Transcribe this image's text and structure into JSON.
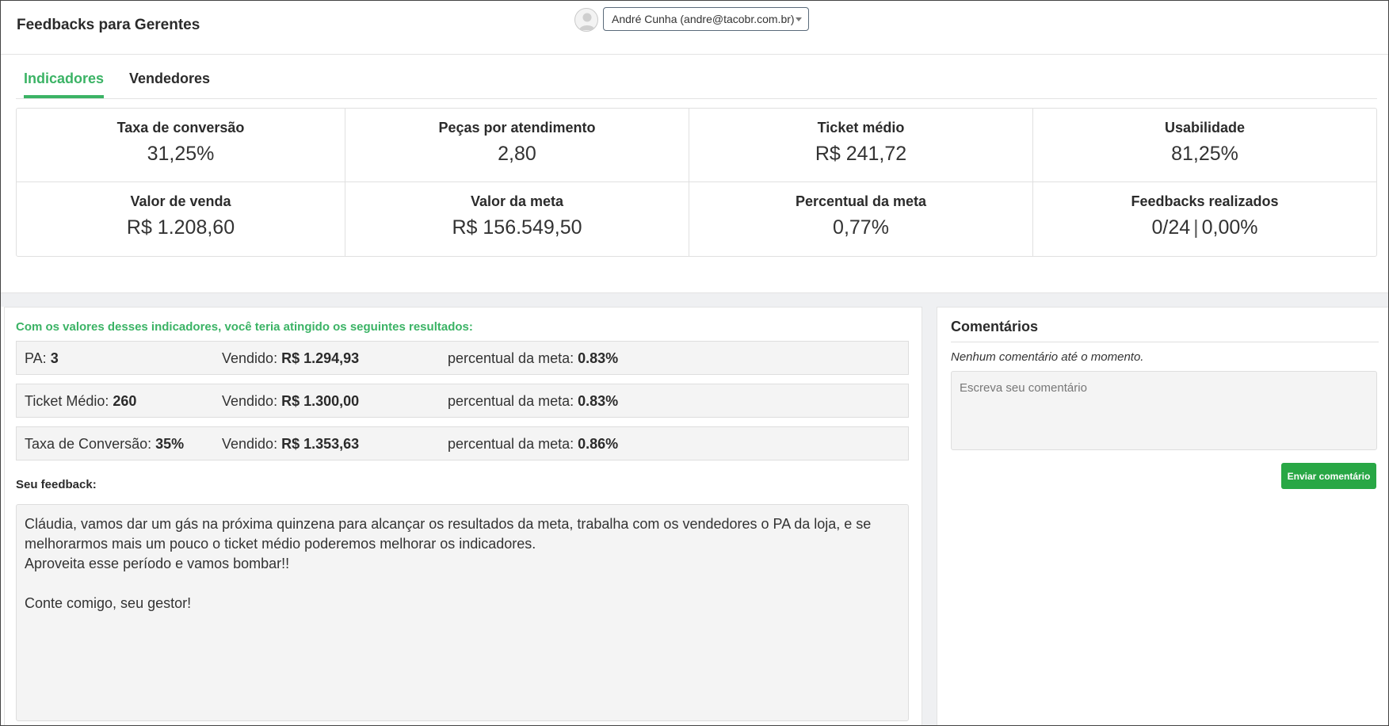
{
  "header": {
    "title": "Feedbacks para Gerentes",
    "user_select": "André Cunha (andre@tacobr.com.br)",
    "avatar_icon": "user-avatar-icon"
  },
  "tabs": [
    {
      "label": "Indicadores",
      "active": true
    },
    {
      "label": "Vendedores",
      "active": false
    }
  ],
  "metrics": [
    {
      "label": "Taxa de conversão",
      "value": "31,25%"
    },
    {
      "label": "Peças por atendimento",
      "value": "2,80"
    },
    {
      "label": "Ticket médio",
      "value": "R$ 241,72"
    },
    {
      "label": "Usabilidade",
      "value": "81,25%"
    },
    {
      "label": "Valor de venda",
      "value": "R$ 1.208,60"
    },
    {
      "label": "Valor da meta",
      "value": "R$ 156.549,50"
    },
    {
      "label": "Percentual da meta",
      "value": "0,77%"
    },
    {
      "label": "Feedbacks realizados",
      "value_a": "0/24",
      "separator": "|",
      "value_b": "0,00%"
    }
  ],
  "results": {
    "heading": "Com os valores desses indicadores, você teria atingido os seguintes resultados:",
    "rows": [
      {
        "label": "PA:",
        "value": "3",
        "sold_label": "Vendido:",
        "sold_value": "R$ 1.294,93",
        "pct_label": "percentual da meta:",
        "pct_value": "0.83%"
      },
      {
        "label": "Ticket Médio:",
        "value": "260",
        "sold_label": "Vendido:",
        "sold_value": "R$ 1.300,00",
        "pct_label": "percentual da meta:",
        "pct_value": "0.83%"
      },
      {
        "label": "Taxa de Conversão:",
        "value": "35%",
        "sold_label": "Vendido:",
        "sold_value": "R$ 1.353,63",
        "pct_label": "percentual da meta:",
        "pct_value": "0.86%"
      }
    ]
  },
  "feedback": {
    "label": "Seu feedback:",
    "text": "Cláudia, vamos dar um gás na próxima quinzena para alcançar os resultados da meta, trabalha com os vendedores o PA da loja, e se melhorarmos mais um pouco o ticket médio poderemos melhorar os indicadores.\nAproveita esse período e vamos bombar!!\n\nConte comigo, seu gestor!"
  },
  "comments": {
    "title": "Comentários",
    "empty_text": "Nenhum comentário até o momento.",
    "placeholder": "Escreva seu comentário",
    "send_label": "Enviar comentário"
  },
  "colors": {
    "accent": "#3bb365",
    "button": "#28a745",
    "panel_bg": "#f4f4f4",
    "band_bg": "#eff0f2"
  }
}
